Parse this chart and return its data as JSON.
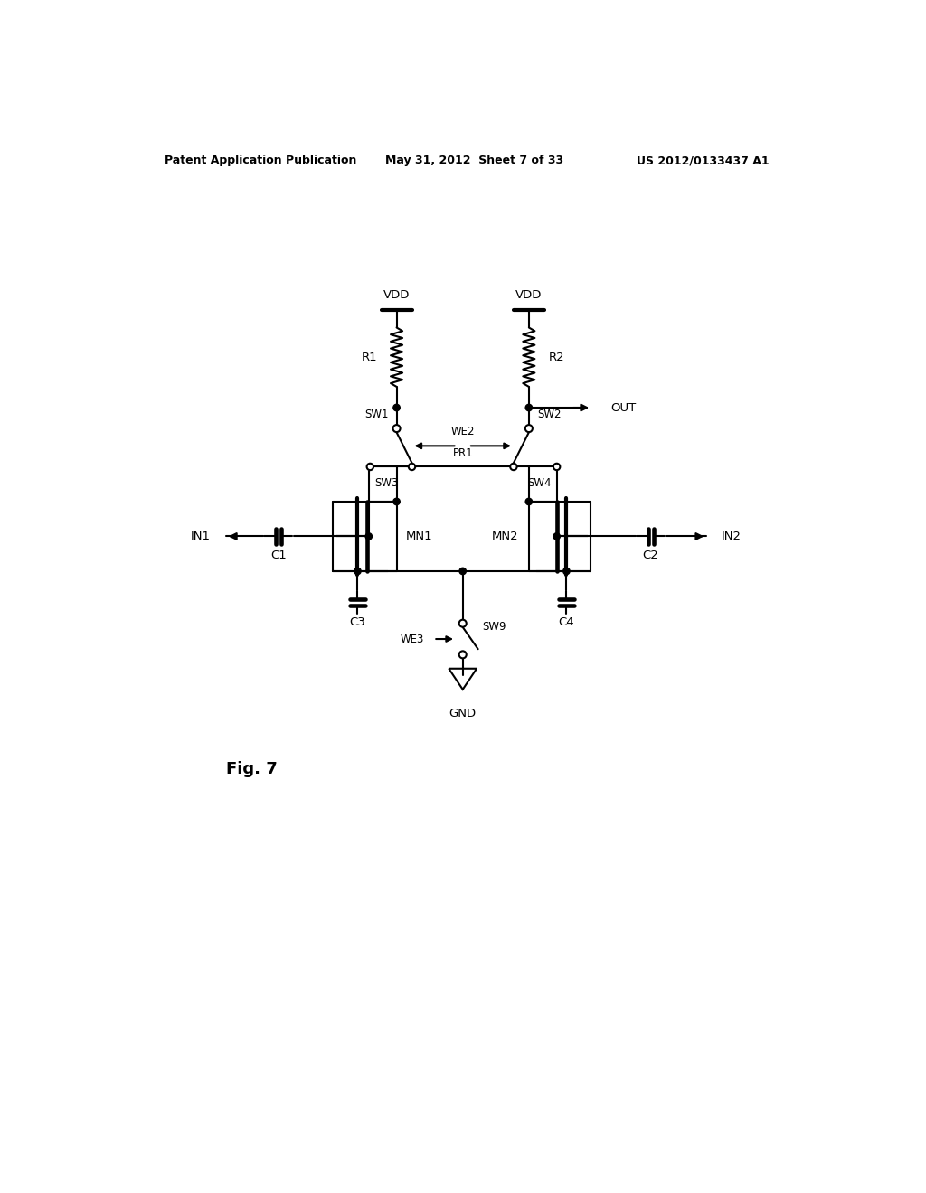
{
  "header1": "Patent Application Publication",
  "header2": "May 31, 2012  Sheet 7 of 33",
  "header3": "US 2012/0133437 A1",
  "fig_label": "Fig. 7",
  "background": "#ffffff",
  "lc": "#000000",
  "lw": 1.5
}
